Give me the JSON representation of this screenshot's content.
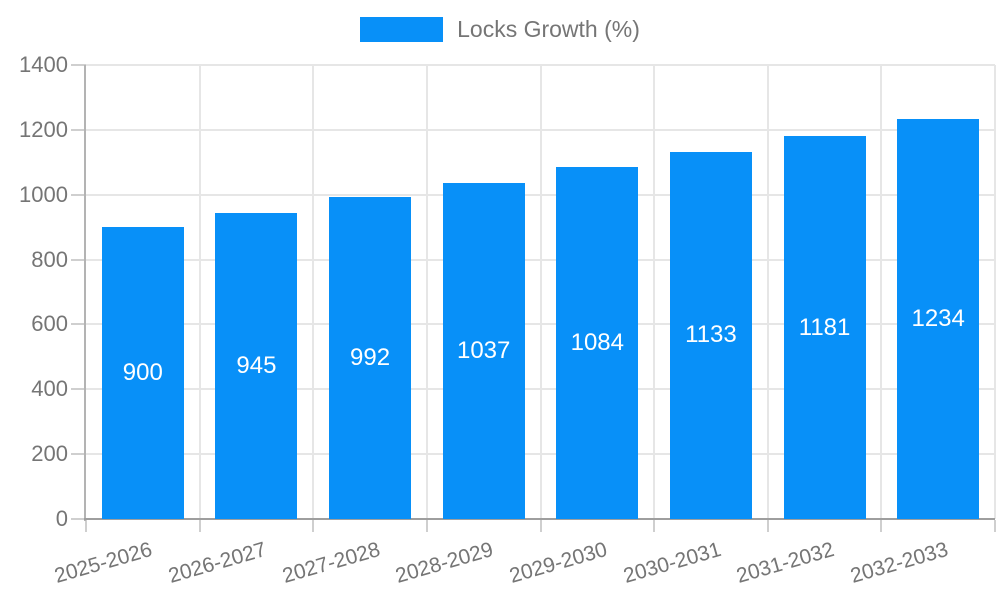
{
  "legend": {
    "label": "Locks Growth (%)",
    "swatch_color": "#0890f8"
  },
  "colors": {
    "bar": "#0890f8",
    "axis_text": "#757575",
    "value_text": "#ffffff",
    "gridline": "#e6e6e6",
    "axis_line": "#9e9e9e",
    "tick": "#cfcfcf",
    "background": "#ffffff"
  },
  "chart_data": {
    "type": "bar",
    "title": "",
    "xlabel": "",
    "ylabel": "",
    "categories": [
      "2025-2026",
      "2026-2027",
      "2027-2028",
      "2028-2029",
      "2029-2030",
      "2030-2031",
      "2031-2032",
      "2032-2033"
    ],
    "series": [
      {
        "name": "Locks Growth (%)",
        "values": [
          900,
          945,
          992,
          1037,
          1084,
          1133,
          1181,
          1234
        ]
      }
    ],
    "ylim": [
      0,
      1400
    ],
    "yticks": [
      0,
      200,
      400,
      600,
      800,
      1000,
      1200,
      1400
    ],
    "grid": true,
    "legend_position": "top-center",
    "value_labels": "inside-center"
  }
}
